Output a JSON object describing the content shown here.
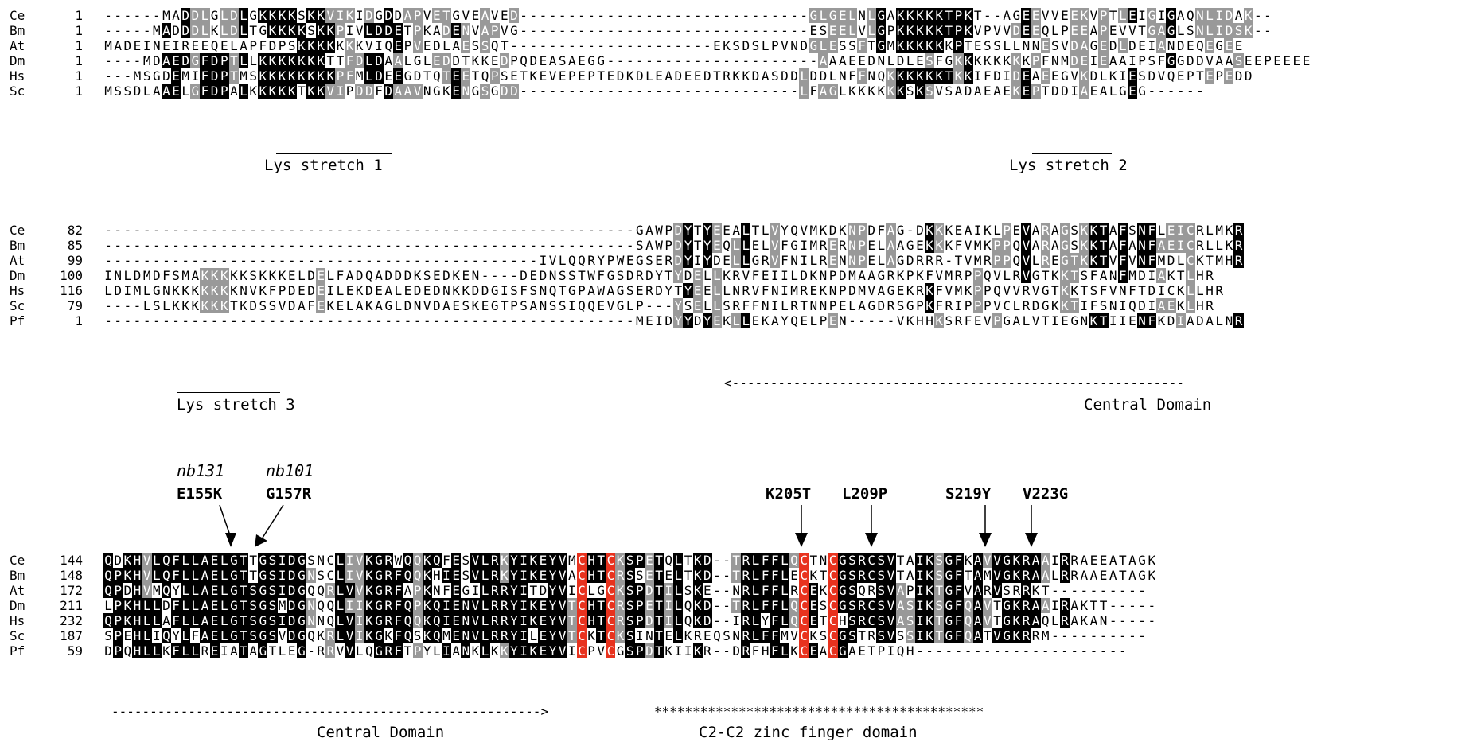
{
  "blocks": [
    {
      "rows": [
        {
          "species": "Ce",
          "start": "1",
          "seq": "------MADDLGLDLGKKKKSKKVIKIDGDDAPVETGVEAVED------------------------------GLGELNLGAKKKKKTPKT--AGEEVVEEKVPTLEIGIGAQNLIDAK--"
        },
        {
          "species": "Bm",
          "start": "1",
          "seq": "-----MADDDLKLDLTGKKKKSKKPIVLDDETPKADENVAPVG------------------------------ESEELVLGPKKKKKTPKVPVVDEEQLPEEAPEVVTGAGLSNLIDSK--"
        },
        {
          "species": "At",
          "start": "1",
          "seq": "MADEINEIREEQELAPFDPSKKKKKKKVIQEPVEDLAESSQT---------------------EKSDSLPVNDGLESSFTGMKKKKKKPTESSLLNNESVDAGEDLDEIANDEQEGEE"
        },
        {
          "species": "Dm",
          "start": "1",
          "seq": "----MDAEDGFDPTLLKKKKKKKTTFDLDAALGLEDDTKKEDPQDEASAEGG----------------------AAAEEDNLDLESFGKKKKKKKKPFNMDEIEAAIPSFGGDDVAASEEPEEEE"
        },
        {
          "species": "Hs",
          "start": "1",
          "seq": "---MSGDEMIFDPTMSKKKKKKKKPFMLDEEGDTQTEETQPSETKEVEPEPTEDKDLEADEEDTRKKDASDDLDDLNFFNQKKKKKKTKKIFDIDEAEEGVKDLKIESDVQEPTEPEDD"
        },
        {
          "species": "Sc",
          "start": "1",
          "seq": "MSSDLAAELGFDPALKKKKKTKKVIPDDFDAAVNGKENGSGDD-----------------------------LFAGLKKKKKKSKSVSADAEAEKEPTDDIAEALGEG------"
        }
      ]
    },
    {
      "rows": [
        {
          "species": "Ce",
          "start": "82",
          "seq": "-------------------------------------------------------GAWPDYTYEEALTLVYQVMKDKNPDFAG-DKKKEAIKLPEVARAGSKKTAFSNFLEICRLMKR"
        },
        {
          "species": "Bm",
          "start": "85",
          "seq": "-------------------------------------------------------SAWPDYTYEQLLELVFGIMRERNPELAAGEKKKFVMKPPQVARAGSKKTAFANFAEICRLLKR"
        },
        {
          "species": "At",
          "start": "99",
          "seq": "---------------------------------------------IVLQQRYPWEGSERDYIYDELLGRVFNILRENNPELAGDRRR-TVMRPPQVLREGTKKTVFVNFMDLCKTMHR"
        },
        {
          "species": "Dm",
          "start": "100",
          "seq": "INLDMDFSMAKKKKKSKKKELDELFADQADDDKSEDKEN----DEDNSSTWFGSDRDYTYDELLKRVFEIILDKNPDMAAGRKPKFVMRPPQVLRVGTKKTSFANFMDIAKTLHR"
        },
        {
          "species": "Hs",
          "start": "116",
          "seq": "LDIMLGNKKKKKKKNVKFPDEDEILEKDEALEDEDNKKDDGISFSNQTGPAWAGSERDYTYEELLNRVFNIMREKNPDMVAGEKRKFVMKPPQVVRVGTKKTSFVNFTDICKLLHR"
        },
        {
          "species": "Sc",
          "start": "79",
          "seq": "----LSLKKKKKKTKDSSVDAFEKELAKAGLDNVDAESKEGTPSANSSIQQEVGLP---YSELLSRFFNILRTNNPELAGDRSGPKFRIPPPVCLRDGKKTIFSNIQDIAEKLHR"
        },
        {
          "species": "Pf",
          "start": "1",
          "seq": "-------------------------------------------------------MEIDYYDYEKLLEKAYQELPEN-----VKHHKSRFEVPGALVTIEGNKTIIENFKDIADALNR"
        }
      ]
    },
    {
      "rows": [
        {
          "species": "Ce",
          "start": "144",
          "seq": "QDKHVLQFLLAELGTTGSIDGSNCLIVKGRWQQKQFESVLRKYIKEYVMCHTCKSPETQLTKD--TRLFFLQCTNCGSRCSVTAIKSGFKAVVGKRAAIRRAEEATAGK"
        },
        {
          "species": "Bm",
          "start": "148",
          "seq": "QPKHVLQFLLAELGTTGSIDGNSCLIVKGRFQQKHIESVLRKYIKEYVACHTCRSSETELTKD--TRLFFLECKTCGSRCSVTAIKSGFTAMVGKRAALRRAAEATAGK"
        },
        {
          "species": "At",
          "start": "172",
          "seq": "QPDHVMQYLLAELGTSGSIDGQQRLVVKGRFAPKNFEGILRRYITDYVICLGCKSPDTILSKE--NRLFFLRCEKCGSQRSVAPIKTGFVARVSRRKT----------"
        },
        {
          "species": "Dm",
          "start": "211",
          "seq": "LPKHLLDFLLAELGTSGSMDGNQQLIIKGRFQPKQIENVLRRYIKEYVTCHTCRSPETILQKD--TRLFFLQCESCGSRCSVASIKSGFQAVTGKRAAIRAKTT-----"
        },
        {
          "species": "Hs",
          "start": "232",
          "seq": "QPKHLLAFLLAELGTSGSIDGNNQLVIKGRFQQKQIENVLRRYIKEYVTCHTCRSPDTILQKD--IRLYFLQCETCHSRCSVASIKTGFQAVTGKRAQLRAKAN-----"
        },
        {
          "species": "Sc",
          "start": "187",
          "seq": "SPEHLIQYLFAELGTSGSVDGQKRLVIKGKFQSKQMENVLRRYILEYVTCKTCKSINTELKREQSNRLFFMVCKSCGSTRSVSSIKTGFQATVGKRRM----------"
        },
        {
          "species": "Pf",
          "start": "59",
          "seq": "DPQHLLKFLLREIATAGTLEG-RRVVLQGRFTPYLIANKLKKYIKEYVICPVCGSPDTKIIKR--DRFHFLKCEACGAETPIQH----------------------"
        }
      ]
    }
  ],
  "annotations": {
    "lys1": "Lys stretch 1",
    "lys2": "Lys stretch 2",
    "lys3": "Lys stretch 3",
    "central1": "Central Domain",
    "central2": "Central Domain",
    "zinc": "C2-C2 zinc finger domain",
    "arrow_left": "<-----------------------------------------------------------",
    "arrow_right": "-------------------------------------------------------->",
    "stars": "*******************************************"
  },
  "mutations": [
    {
      "allele": "nb131",
      "label": "E155K"
    },
    {
      "allele": "nb101",
      "label": "G157R"
    },
    {
      "allele": "",
      "label": "K205T"
    },
    {
      "allele": "",
      "label": "L209P"
    },
    {
      "allele": "",
      "label": "S219Y"
    },
    {
      "allele": "",
      "label": "V223G"
    }
  ],
  "colors": {
    "identical": "#000000",
    "similar": "#999999",
    "zinc_cys": "#e8321e"
  }
}
